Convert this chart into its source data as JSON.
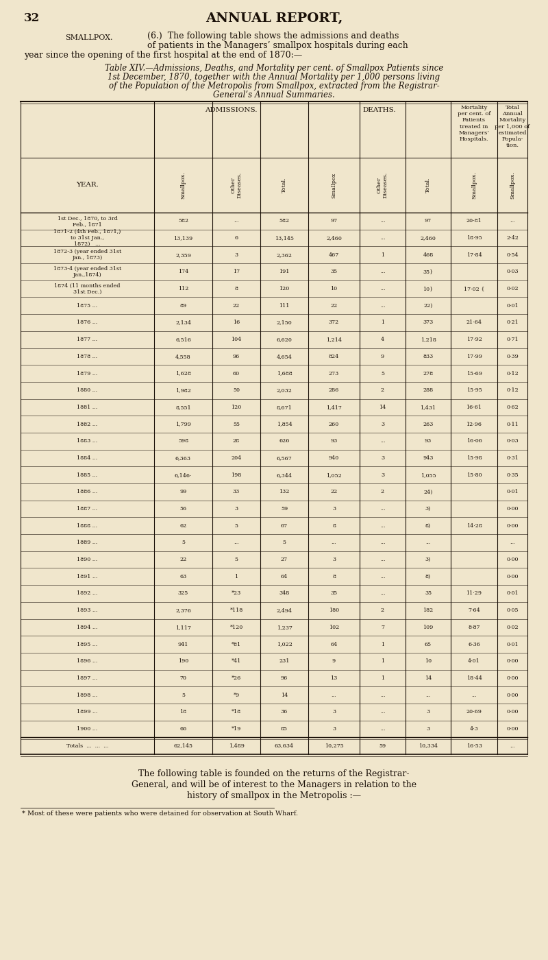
{
  "page_num": "32",
  "page_title": "ANNUAL REPORT,",
  "smallpox_label": "SMALLPOX.",
  "bg_color": "#f0e6cc",
  "text_color": "#1a1008",
  "line_color": "#1a1008",
  "rows": [
    {
      "year": "1st Dec., 1870, to 3rd\nFeb., 1871",
      "adm_sp": "582",
      "adm_oth": "...",
      "adm_tot": "582",
      "dth_sp": "97",
      "dth_oth": "...",
      "dth_tot": "97",
      "mort_pct": "20·81",
      "ann_mort": "..."
    },
    {
      "year": "1871-2 (4th Feb., 1871,)\nto 31st Jan.,\n1872)   ...",
      "adm_sp": "13,139",
      "adm_oth": "6",
      "adm_tot": "13,145",
      "dth_sp": "2,460",
      "dth_oth": "...",
      "dth_tot": "2,460",
      "mort_pct": "18·95",
      "ann_mort": "2·42"
    },
    {
      "year": "1872-3 (year ended 31st\nJan., 1873)",
      "adm_sp": "2,359",
      "adm_oth": "3",
      "adm_tot": "2,362",
      "dth_sp": "467",
      "dth_oth": "1",
      "dth_tot": "468",
      "mort_pct": "17·84",
      "ann_mort": "0·54"
    },
    {
      "year": "1873-4 (year ended 31st\nJan.,1874)",
      "adm_sp": "174",
      "adm_oth": "17",
      "adm_tot": "191",
      "dth_sp": "35",
      "dth_oth": "...",
      "dth_tot": "35}",
      "mort_pct": "",
      "ann_mort": "0·03"
    },
    {
      "year": "1874 (11 months ended\n31st Dec.)",
      "adm_sp": "112",
      "adm_oth": "8",
      "adm_tot": "120",
      "dth_sp": "10",
      "dth_oth": "...",
      "dth_tot": "10}",
      "mort_pct": "17·02 {",
      "ann_mort": "0·02"
    },
    {
      "year": "1875 ...",
      "adm_sp": "89",
      "adm_oth": "22",
      "adm_tot": "111",
      "dth_sp": "22",
      "dth_oth": "...",
      "dth_tot": "22)",
      "mort_pct": "",
      "ann_mort": "0·01"
    },
    {
      "year": "1876 ...",
      "adm_sp": "2,134",
      "adm_oth": "16",
      "adm_tot": "2,150",
      "dth_sp": "372",
      "dth_oth": "1",
      "dth_tot": "373",
      "mort_pct": "21·64",
      "ann_mort": "0·21"
    },
    {
      "year": "1877 ...",
      "adm_sp": "6,516",
      "adm_oth": "104",
      "adm_tot": "6,620",
      "dth_sp": "1,214",
      "dth_oth": "4",
      "dth_tot": "1,218",
      "mort_pct": "17·92",
      "ann_mort": "0·71"
    },
    {
      "year": "1878 ...",
      "adm_sp": "4,558",
      "adm_oth": "96",
      "adm_tot": "4,654",
      "dth_sp": "824",
      "dth_oth": "9",
      "dth_tot": "833",
      "mort_pct": "17·99",
      "ann_mort": "0·39"
    },
    {
      "year": "1879 ...",
      "adm_sp": "1,628",
      "adm_oth": "60",
      "adm_tot": "1,688",
      "dth_sp": "273",
      "dth_oth": "5",
      "dth_tot": "278",
      "mort_pct": "15·69",
      "ann_mort": "0·12"
    },
    {
      "year": "1880 ...",
      "adm_sp": "1,982",
      "adm_oth": "50",
      "adm_tot": "2,032",
      "dth_sp": "286",
      "dth_oth": "2",
      "dth_tot": "288",
      "mort_pct": "15·95",
      "ann_mort": "0·12"
    },
    {
      "year": "1881 ...",
      "adm_sp": "8,551",
      "adm_oth": "120",
      "adm_tot": "8,671",
      "dth_sp": "1,417",
      "dth_oth": "14",
      "dth_tot": "1,431",
      "mort_pct": "16·61",
      "ann_mort": "0·62"
    },
    {
      "year": "1882 ...",
      "adm_sp": "1,799",
      "adm_oth": "55",
      "adm_tot": "1,854",
      "dth_sp": "260",
      "dth_oth": "3",
      "dth_tot": "263",
      "mort_pct": "12·96",
      "ann_mort": "0·11"
    },
    {
      "year": "1883 ...",
      "adm_sp": "598",
      "adm_oth": "28",
      "adm_tot": "626",
      "dth_sp": "93",
      "dth_oth": "...",
      "dth_tot": "93",
      "mort_pct": "16·06",
      "ann_mort": "0·03"
    },
    {
      "year": "1884 ...",
      "adm_sp": "6,363",
      "adm_oth": "204",
      "adm_tot": "6,567",
      "dth_sp": "940",
      "dth_oth": "3",
      "dth_tot": "943",
      "mort_pct": "15·98",
      "ann_mort": "0·31"
    },
    {
      "year": "1885 ...",
      "adm_sp": "6,146·",
      "adm_oth": "198",
      "adm_tot": "6,344",
      "dth_sp": "1,052",
      "dth_oth": "3",
      "dth_tot": "1,055",
      "mort_pct": "15·80",
      "ann_mort": "0·35"
    },
    {
      "year": "1886 ...",
      "adm_sp": "99",
      "adm_oth": "33",
      "adm_tot": "132",
      "dth_sp": "22",
      "dth_oth": "2",
      "dth_tot": "24)",
      "mort_pct": "",
      "ann_mort": "0·01"
    },
    {
      "year": "1887 ...",
      "adm_sp": "56",
      "adm_oth": "3",
      "adm_tot": "59",
      "dth_sp": "3",
      "dth_oth": "...",
      "dth_tot": "3)",
      "mort_pct": "",
      "ann_mort": "0·00"
    },
    {
      "year": "1888 ...",
      "adm_sp": "62",
      "adm_oth": "5",
      "adm_tot": "67",
      "dth_sp": "8",
      "dth_oth": "...",
      "dth_tot": "8)",
      "mort_pct": "14·28",
      "ann_mort": "0·00"
    },
    {
      "year": "1889 ...",
      "adm_sp": "5",
      "adm_oth": "...",
      "adm_tot": "5",
      "dth_sp": "...",
      "dth_oth": "...",
      "dth_tot": "...",
      "mort_pct": "",
      "ann_mort": "..."
    },
    {
      "year": "1890 ...",
      "adm_sp": "22",
      "adm_oth": "5",
      "adm_tot": "27",
      "dth_sp": "3",
      "dth_oth": "...",
      "dth_tot": "3)",
      "mort_pct": "",
      "ann_mort": "0·00"
    },
    {
      "year": "1891 ...",
      "adm_sp": "63",
      "adm_oth": "1",
      "adm_tot": "64",
      "dth_sp": "8",
      "dth_oth": "...",
      "dth_tot": "8)",
      "mort_pct": "",
      "ann_mort": "0·00"
    },
    {
      "year": "1892 ...",
      "adm_sp": "325",
      "adm_oth": "*23",
      "adm_tot": "348",
      "dth_sp": "35",
      "dth_oth": "...",
      "dth_tot": "35",
      "mort_pct": "11·29",
      "ann_mort": "0·01"
    },
    {
      "year": "1893 ...",
      "adm_sp": "2,376",
      "adm_oth": "*118",
      "adm_tot": "2,494",
      "dth_sp": "180",
      "dth_oth": "2",
      "dth_tot": "182",
      "mort_pct": "7·64",
      "ann_mort": "0·05"
    },
    {
      "year": "1894 ...",
      "adm_sp": "1,117",
      "adm_oth": "*120",
      "adm_tot": "1,237",
      "dth_sp": "102",
      "dth_oth": "7",
      "dth_tot": "109",
      "mort_pct": "8·87",
      "ann_mort": "0·02"
    },
    {
      "year": "1895 ...",
      "adm_sp": "941",
      "adm_oth": "*81",
      "adm_tot": "1,022",
      "dth_sp": "64",
      "dth_oth": "1",
      "dth_tot": "65",
      "mort_pct": "6·36",
      "ann_mort": "0·01"
    },
    {
      "year": "1896 ...",
      "adm_sp": "190",
      "adm_oth": "*41",
      "adm_tot": "231",
      "dth_sp": "9",
      "dth_oth": "1",
      "dth_tot": "10",
      "mort_pct": "4·01",
      "ann_mort": "0·00"
    },
    {
      "year": "1897 ...",
      "adm_sp": "70",
      "adm_oth": "*26",
      "adm_tot": "96",
      "dth_sp": "13",
      "dth_oth": "1",
      "dth_tot": "14",
      "mort_pct": "18·44",
      "ann_mort": "0·00"
    },
    {
      "year": "1898 ...",
      "adm_sp": "5",
      "adm_oth": "*9",
      "adm_tot": "14",
      "dth_sp": "...",
      "dth_oth": "...",
      "dth_tot": "...",
      "mort_pct": "...",
      "ann_mort": "0·00"
    },
    {
      "year": "1899 ...",
      "adm_sp": "18",
      "adm_oth": "*18",
      "adm_tot": "36",
      "dth_sp": "3",
      "dth_oth": "...",
      "dth_tot": "3",
      "mort_pct": "20·69",
      "ann_mort": "0·00"
    },
    {
      "year": "1900 ...",
      "adm_sp": "66",
      "adm_oth": "*19",
      "adm_tot": "85",
      "dth_sp": "3",
      "dth_oth": "...",
      "dth_tot": "3",
      "mort_pct": "4·3",
      "ann_mort": "0·00"
    },
    {
      "year": "Totals  ...  ...  ...",
      "adm_sp": "62,145",
      "adm_oth": "1,489",
      "adm_tot": "63,634",
      "dth_sp": "10,275",
      "dth_oth": "59",
      "dth_tot": "10,334",
      "mort_pct": "16·53",
      "ann_mort": "..."
    }
  ],
  "footnote": "* Most of these were patients who were detained for observation at South Wharf.",
  "footer_text1": "The following table is founded on the returns of the Registrar-",
  "footer_text2": "General, and will be of interest to the Managers in relation to the",
  "footer_text3": "history of smallpox in the Metropolis :—"
}
